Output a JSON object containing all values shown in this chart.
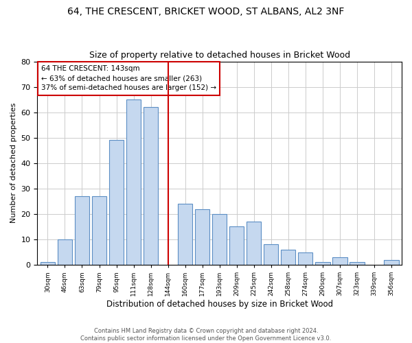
{
  "title_line1": "64, THE CRESCENT, BRICKET WOOD, ST ALBANS, AL2 3NF",
  "title_line2": "Size of property relative to detached houses in Bricket Wood",
  "xlabel": "Distribution of detached houses by size in Bricket Wood",
  "ylabel": "Number of detached properties",
  "footer_line1": "Contains HM Land Registry data © Crown copyright and database right 2024.",
  "footer_line2": "Contains public sector information licensed under the Open Government Licence v3.0.",
  "categories": [
    "30sqm",
    "46sqm",
    "63sqm",
    "79sqm",
    "95sqm",
    "111sqm",
    "128sqm",
    "144sqm",
    "160sqm",
    "177sqm",
    "193sqm",
    "209sqm",
    "225sqm",
    "242sqm",
    "258sqm",
    "274sqm",
    "290sqm",
    "307sqm",
    "323sqm",
    "339sqm",
    "356sqm"
  ],
  "bar_categories": [
    "30sqm",
    "46sqm",
    "63sqm",
    "79sqm",
    "95sqm",
    "111sqm",
    "128sqm",
    "160sqm",
    "177sqm",
    "193sqm",
    "209sqm",
    "225sqm",
    "242sqm",
    "258sqm",
    "274sqm",
    "290sqm",
    "307sqm",
    "323sqm",
    "339sqm",
    "356sqm"
  ],
  "values": [
    1,
    10,
    27,
    27,
    49,
    65,
    62,
    24,
    22,
    20,
    15,
    17,
    8,
    6,
    5,
    1,
    3,
    1,
    0,
    2
  ],
  "bar_color": "#c5d8ef",
  "bar_edge_color": "#5b8ec4",
  "marker_color": "#cc0000",
  "annotation_title": "64 THE CRESCENT: 143sqm",
  "annotation_line1": "← 63% of detached houses are smaller (263)",
  "annotation_line2": "37% of semi-detached houses are larger (152) →",
  "annotation_box_color": "#cc0000",
  "ylim": [
    0,
    80
  ],
  "yticks": [
    0,
    10,
    20,
    30,
    40,
    50,
    60,
    70,
    80
  ],
  "grid_color": "#cccccc",
  "background_color": "#ffffff",
  "title_fontsize": 10,
  "subtitle_fontsize": 9
}
